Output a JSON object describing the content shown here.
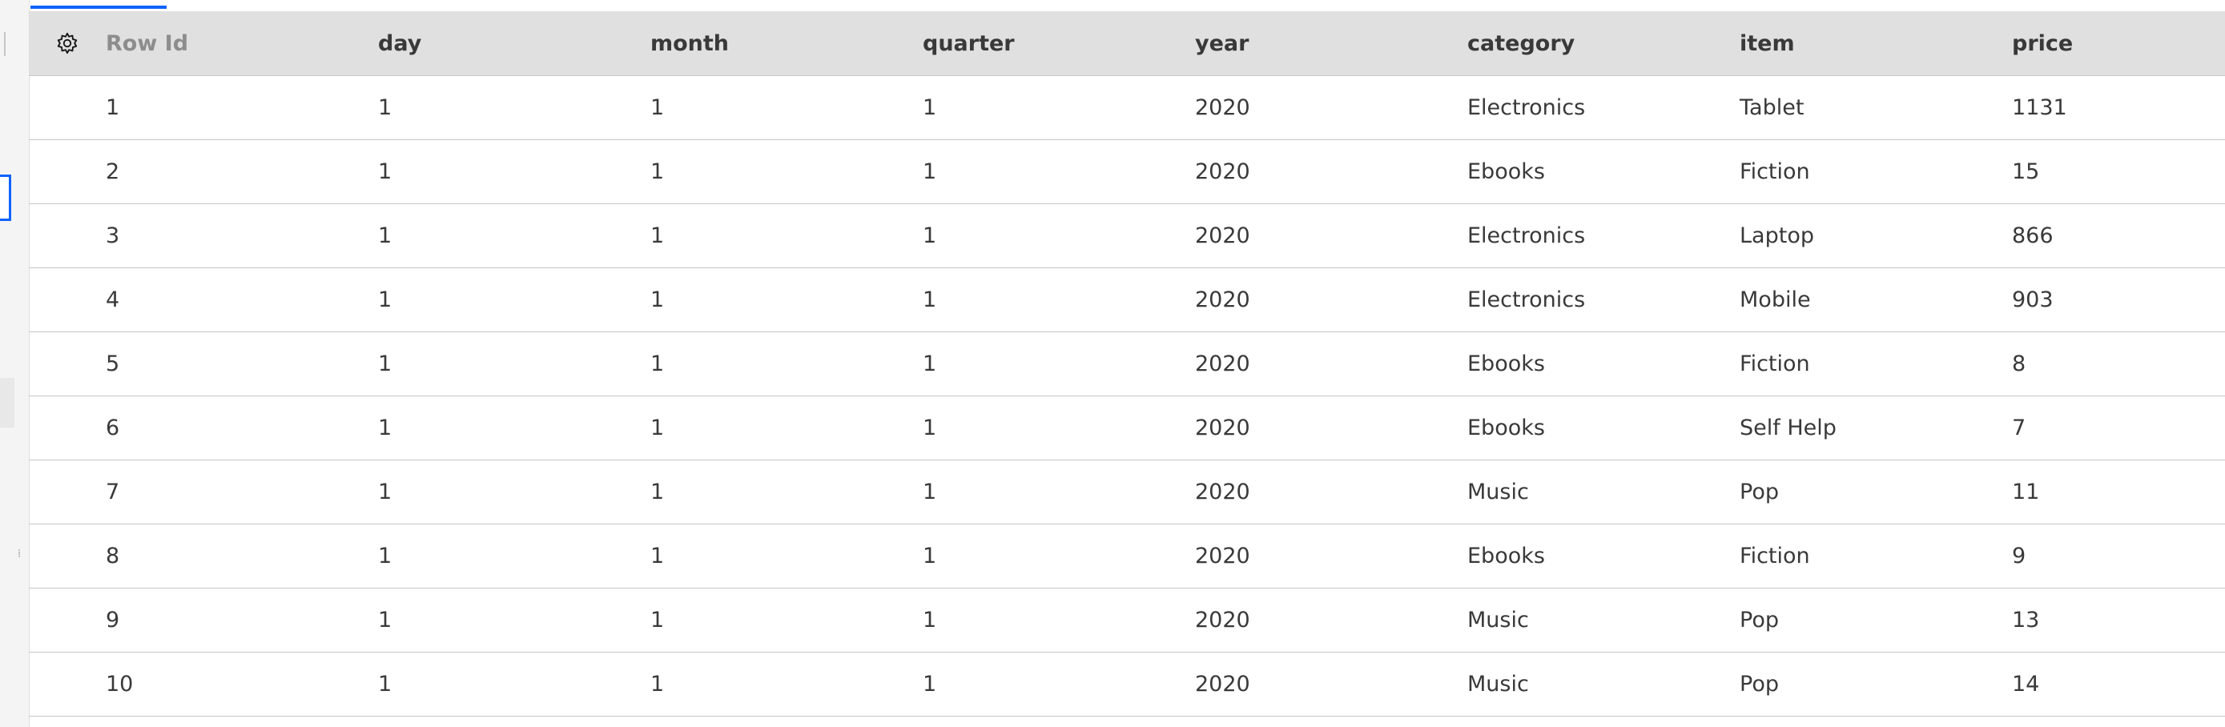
{
  "table": {
    "columns": [
      "Row Id",
      "day",
      "month",
      "quarter",
      "year",
      "category",
      "item",
      "price"
    ],
    "rows": [
      {
        "row_id": "1",
        "day": "1",
        "month": "1",
        "quarter": "1",
        "year": "2020",
        "category": "Electronics",
        "item": "Tablet",
        "price": "1131"
      },
      {
        "row_id": "2",
        "day": "1",
        "month": "1",
        "quarter": "1",
        "year": "2020",
        "category": "Ebooks",
        "item": "Fiction",
        "price": "15"
      },
      {
        "row_id": "3",
        "day": "1",
        "month": "1",
        "quarter": "1",
        "year": "2020",
        "category": "Electronics",
        "item": "Laptop",
        "price": "866"
      },
      {
        "row_id": "4",
        "day": "1",
        "month": "1",
        "quarter": "1",
        "year": "2020",
        "category": "Electronics",
        "item": "Mobile",
        "price": "903"
      },
      {
        "row_id": "5",
        "day": "1",
        "month": "1",
        "quarter": "1",
        "year": "2020",
        "category": "Ebooks",
        "item": "Fiction",
        "price": "8"
      },
      {
        "row_id": "6",
        "day": "1",
        "month": "1",
        "quarter": "1",
        "year": "2020",
        "category": "Ebooks",
        "item": "Self Help",
        "price": "7"
      },
      {
        "row_id": "7",
        "day": "1",
        "month": "1",
        "quarter": "1",
        "year": "2020",
        "category": "Music",
        "item": "Pop",
        "price": "11"
      },
      {
        "row_id": "8",
        "day": "1",
        "month": "1",
        "quarter": "1",
        "year": "2020",
        "category": "Ebooks",
        "item": "Fiction",
        "price": "9"
      },
      {
        "row_id": "9",
        "day": "1",
        "month": "1",
        "quarter": "1",
        "year": "2020",
        "category": "Music",
        "item": "Pop",
        "price": "13"
      },
      {
        "row_id": "10",
        "day": "1",
        "month": "1",
        "quarter": "1",
        "year": "2020",
        "category": "Music",
        "item": "Pop",
        "price": "14"
      }
    ]
  },
  "icons": {
    "settings": "gear-icon",
    "resize_handle": "drag-handle-icon"
  },
  "colors": {
    "accent": "#0f62fe",
    "header_bg": "#e0e0e0",
    "row_divider": "#c6c6c6"
  }
}
